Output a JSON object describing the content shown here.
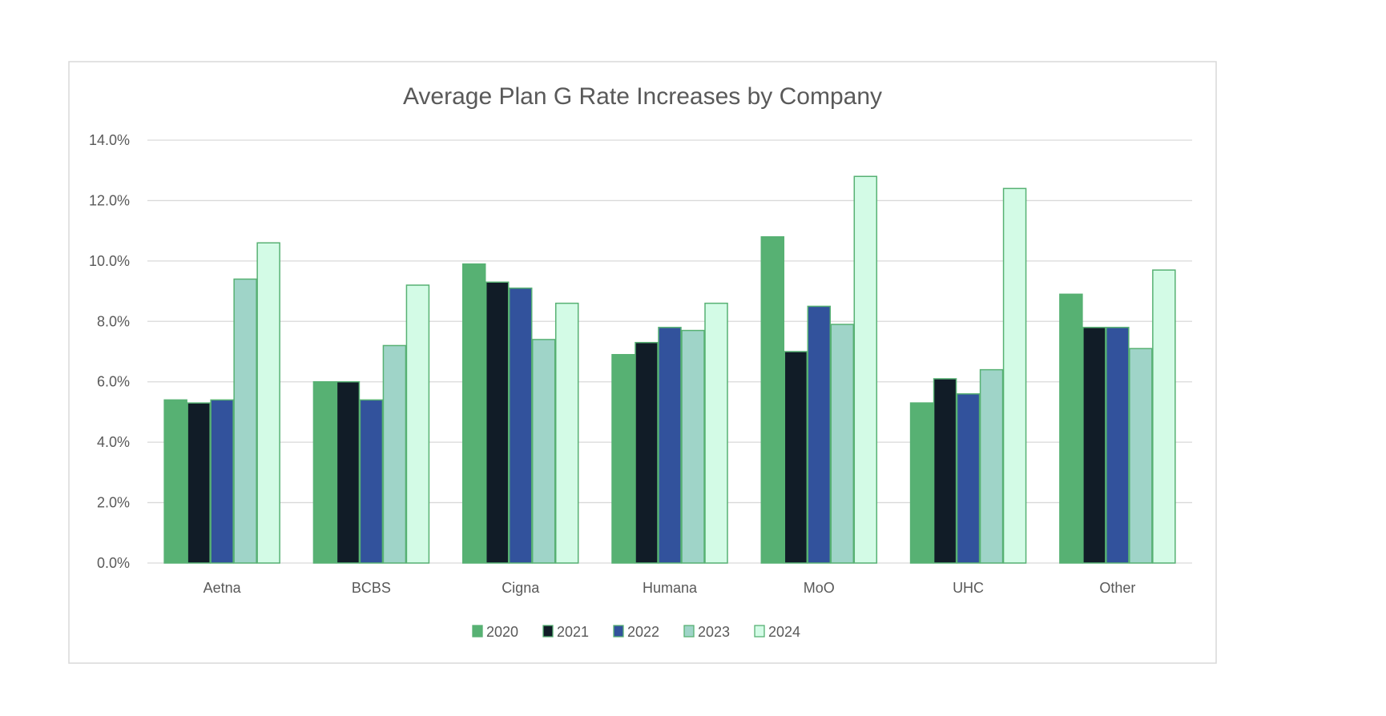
{
  "chart_data": {
    "type": "bar",
    "title": "Average Plan G Rate Increases by Company",
    "xlabel": "",
    "ylabel": "",
    "ylim": [
      0,
      14
    ],
    "y_ticks": [
      "0.0%",
      "2.0%",
      "4.0%",
      "6.0%",
      "8.0%",
      "10.0%",
      "12.0%",
      "14.0%"
    ],
    "grid": true,
    "legend_position": "bottom",
    "categories": [
      "Aetna",
      "BCBS",
      "Cigna",
      "Humana",
      "MoO",
      "UHC",
      "Other"
    ],
    "series": [
      {
        "name": "2020",
        "color": "#57b173",
        "border": "#57b173",
        "values": [
          5.4,
          6.0,
          9.9,
          6.9,
          10.8,
          5.3,
          8.9
        ]
      },
      {
        "name": "2021",
        "color": "#111c27",
        "border": "#57b173",
        "values": [
          5.3,
          6.0,
          9.3,
          7.3,
          7.0,
          6.1,
          7.8
        ]
      },
      {
        "name": "2022",
        "color": "#32529c",
        "border": "#57b173",
        "values": [
          5.4,
          5.4,
          9.1,
          7.8,
          8.5,
          5.6,
          7.8
        ]
      },
      {
        "name": "2023",
        "color": "#9fd4c8",
        "border": "#57b173",
        "values": [
          9.4,
          7.2,
          7.4,
          7.7,
          7.9,
          6.4,
          7.1
        ]
      },
      {
        "name": "2024",
        "color": "#d3fbe6",
        "border": "#57b173",
        "values": [
          10.6,
          9.2,
          8.6,
          8.6,
          12.8,
          12.4,
          9.7
        ]
      }
    ]
  }
}
